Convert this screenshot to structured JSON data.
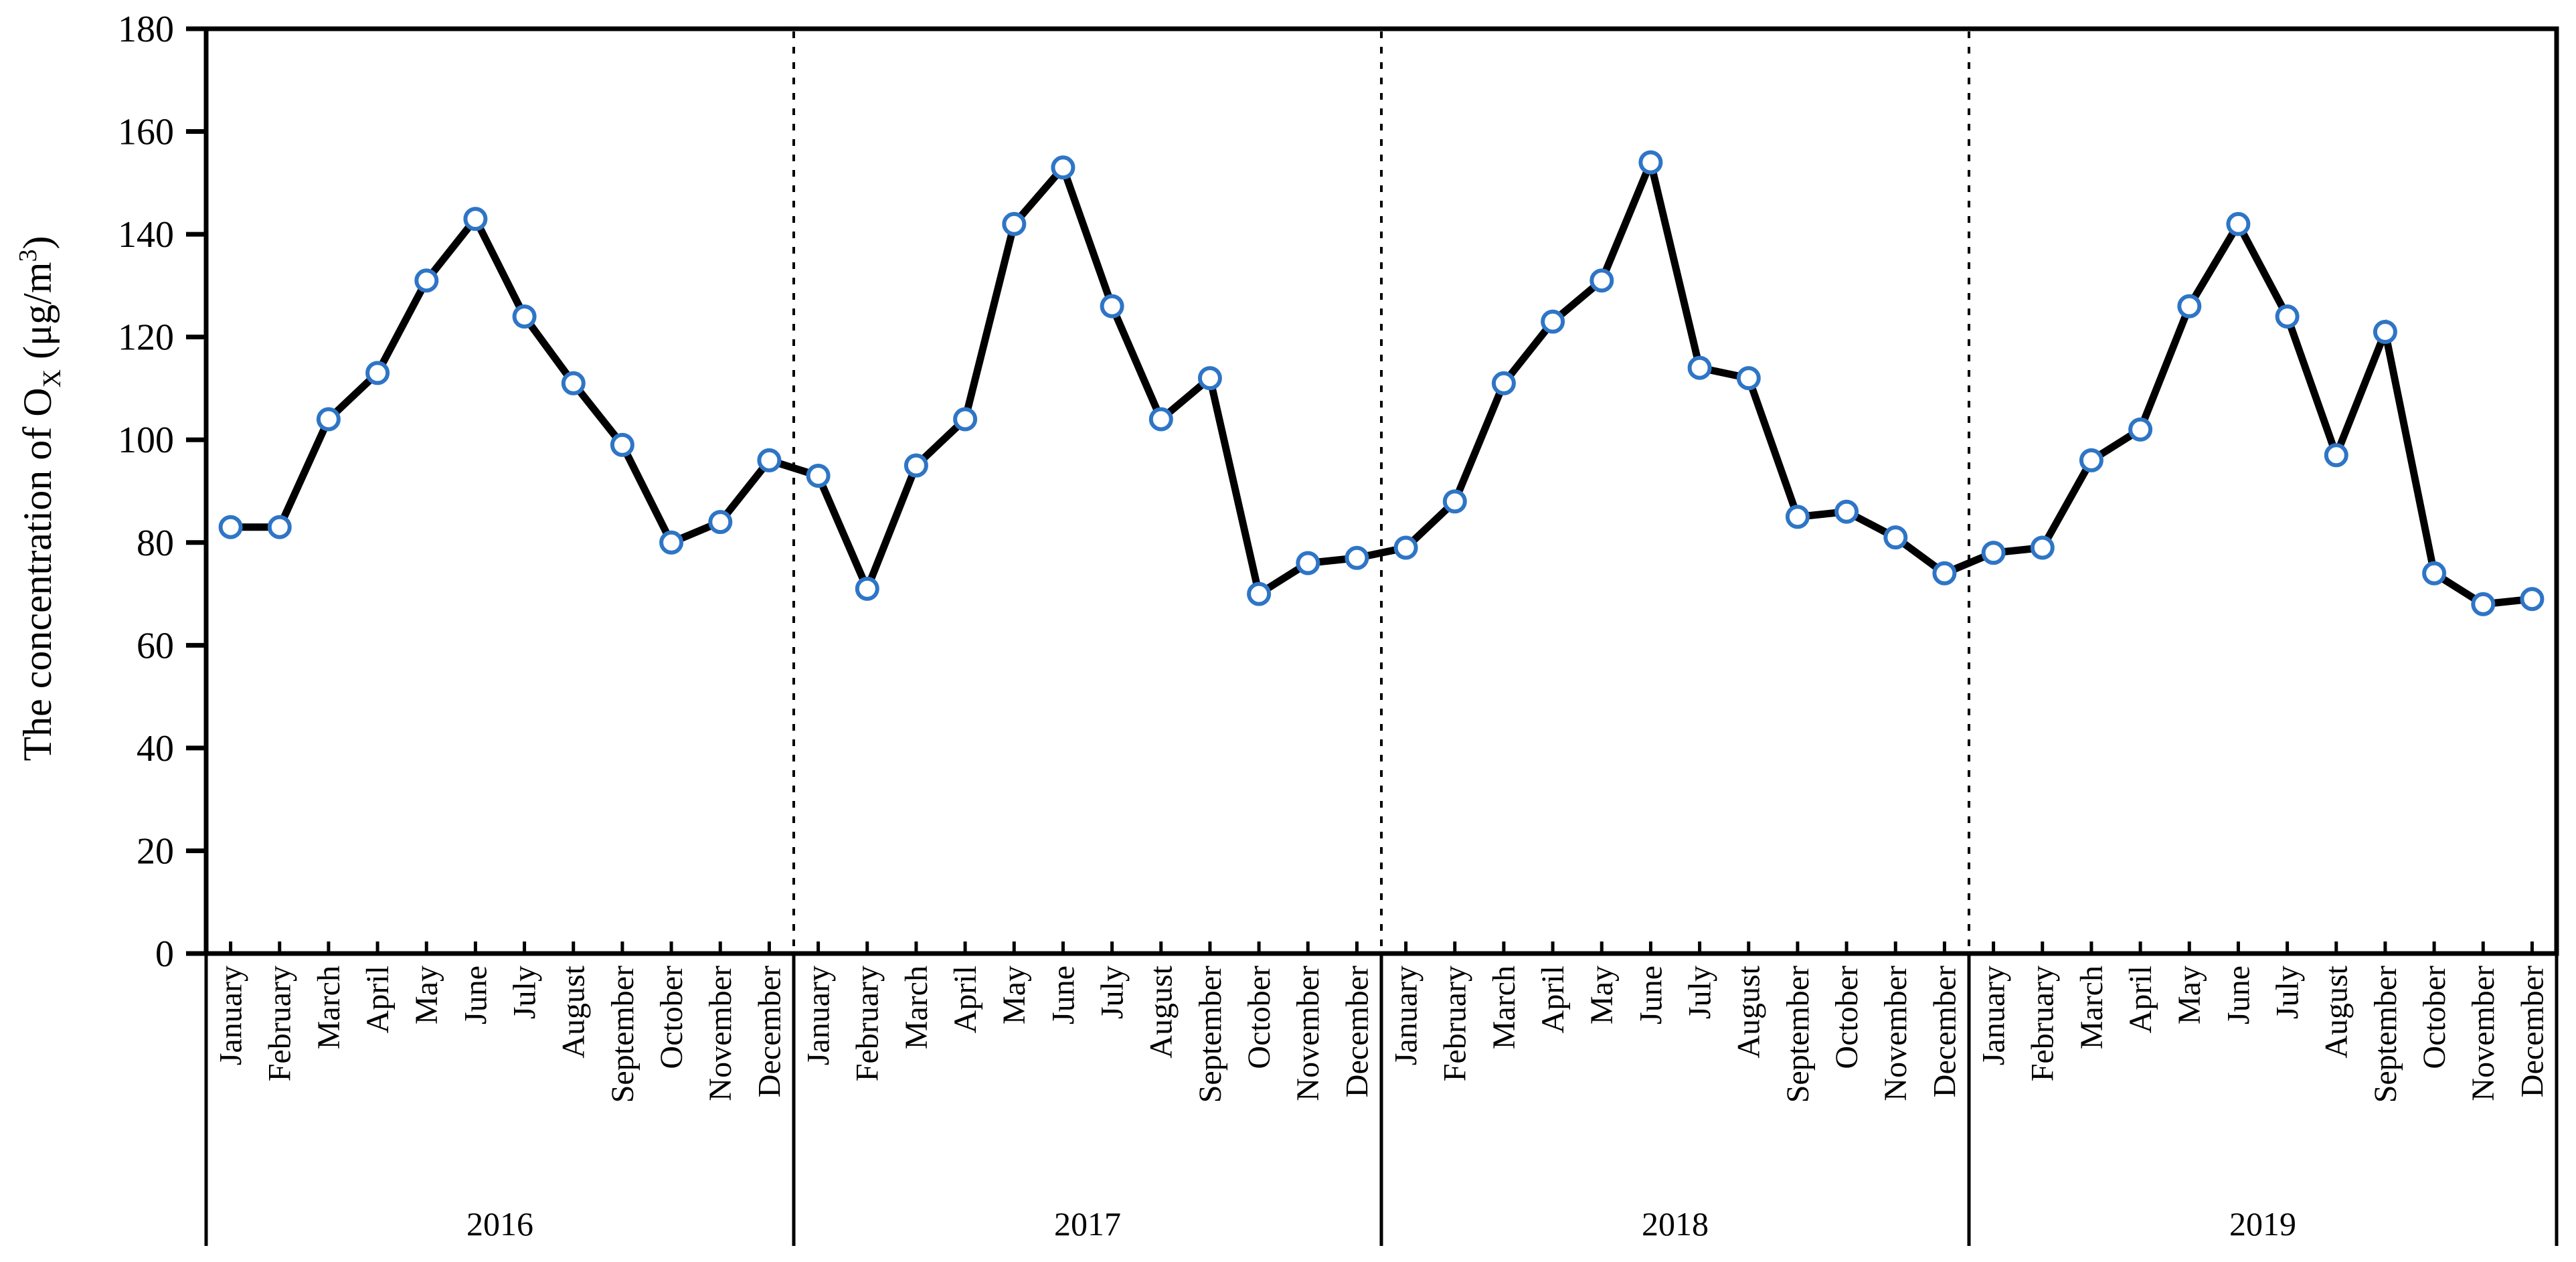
{
  "chart_data": {
    "type": "line",
    "title": "",
    "ylabel": {
      "prefix": "The concentration of O",
      "sub": "X",
      "unit_open": " (μg/m",
      "unit_sup": "3",
      "unit_close": ")"
    },
    "ylim": [
      0,
      180
    ],
    "yticks": [
      0,
      20,
      40,
      60,
      80,
      100,
      120,
      140,
      160,
      180
    ],
    "grid": false,
    "legend_position": "none",
    "months": [
      "January",
      "February",
      "March",
      "April",
      "May",
      "June",
      "July",
      "August",
      "September",
      "October",
      "November",
      "December"
    ],
    "years": [
      "2016",
      "2017",
      "2018",
      "2019"
    ],
    "series": [
      {
        "name": "2016",
        "values": [
          83,
          83,
          104,
          113,
          131,
          143,
          124,
          111,
          99,
          80,
          84,
          96
        ]
      },
      {
        "name": "2017",
        "values": [
          93,
          71,
          95,
          104,
          142,
          153,
          126,
          104,
          112,
          70,
          76,
          77
        ]
      },
      {
        "name": "2018",
        "values": [
          79,
          88,
          111,
          123,
          131,
          154,
          114,
          112,
          85,
          86,
          81,
          74
        ]
      },
      {
        "name": "2019",
        "values": [
          78,
          79,
          96,
          102,
          126,
          142,
          124,
          97,
          121,
          74,
          68,
          69
        ]
      }
    ],
    "styles": {
      "background": "#FFFFFF",
      "line_color": "#000000",
      "marker_fill": "#FFFFFF",
      "marker_stroke": "#2E75C6",
      "axis_color": "#000000",
      "divider_style": "dashed"
    }
  }
}
